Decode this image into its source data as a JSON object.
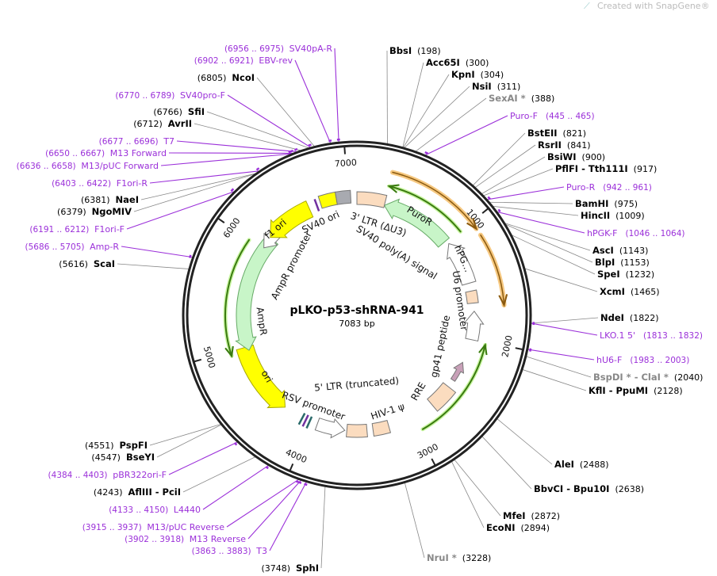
{
  "watermark": "Created with SnapGene®",
  "plasmid": {
    "name": "pLKO-p53-shRNA-941",
    "size_label": "7083 bp",
    "length_bp": 7083
  },
  "colors": {
    "primer": "#9b30d9",
    "site": "#000000",
    "nonunique_site": "#888888",
    "yellow": "#ffff00",
    "green": "#c8f5c8",
    "orange": "#e8a040",
    "peach": "#fbdcbf"
  },
  "ticks": [
    "1000",
    "2000",
    "3000",
    "4000",
    "5000",
    "6000",
    "7000"
  ],
  "sites": [
    {
      "name": "BbsI",
      "pos": 198
    },
    {
      "name": "Acc65I",
      "pos": 300
    },
    {
      "name": "KpnI",
      "pos": 304
    },
    {
      "name": "NsiI",
      "pos": 311
    },
    {
      "name": "SexAI *",
      "pos": 388,
      "gray": true
    },
    {
      "name": "BstEII",
      "pos": 821
    },
    {
      "name": "RsrII",
      "pos": 841
    },
    {
      "name": "BsiWI",
      "pos": 900
    },
    {
      "name": "PflFI - Tth111I",
      "pos": 917
    },
    {
      "name": "BamHI",
      "pos": 975
    },
    {
      "name": "HincII",
      "pos": 1009
    },
    {
      "name": "AscI",
      "pos": 1143
    },
    {
      "name": "BlpI",
      "pos": 1153
    },
    {
      "name": "SpeI",
      "pos": 1232
    },
    {
      "name": "XcmI",
      "pos": 1465
    },
    {
      "name": "NdeI",
      "pos": 1822
    },
    {
      "name": "BspDI * - ClaI *",
      "pos": 2040,
      "gray": true
    },
    {
      "name": "KflI - PpuMI",
      "pos": 2128
    },
    {
      "name": "AleI",
      "pos": 2488
    },
    {
      "name": "BbvCI - Bpu10I",
      "pos": 2638
    },
    {
      "name": "MfeI",
      "pos": 2872
    },
    {
      "name": "EcoNI",
      "pos": 2894
    },
    {
      "name": "NruI *",
      "pos": 3228,
      "gray": true
    },
    {
      "name": "SphI",
      "pos": 3748
    },
    {
      "name": "AflIII - PciI",
      "pos": 4243
    },
    {
      "name": "BseYI",
      "pos": 4547
    },
    {
      "name": "PspFI",
      "pos": 4551
    },
    {
      "name": "ScaI",
      "pos": 5616
    },
    {
      "name": "NgoMIV",
      "pos": 6379
    },
    {
      "name": "NaeI",
      "pos": 6381
    },
    {
      "name": "AvrII",
      "pos": 6712
    },
    {
      "name": "SfiI",
      "pos": 6766
    },
    {
      "name": "NcoI",
      "pos": 6805
    }
  ],
  "primers": [
    {
      "name": "Puro-F",
      "range": "445 .. 465",
      "start": 445,
      "end": 465
    },
    {
      "name": "Puro-R",
      "range": "942 .. 961",
      "start": 942,
      "end": 961
    },
    {
      "name": "hPGK-F",
      "range": "1046 .. 1064",
      "start": 1046,
      "end": 1064
    },
    {
      "name": "LKO.1 5'",
      "range": "1813 .. 1832",
      "start": 1813,
      "end": 1832
    },
    {
      "name": "hU6-F",
      "range": "1983 .. 2003",
      "start": 1983,
      "end": 2003
    },
    {
      "name": "T3",
      "range": "3863 .. 3883",
      "start": 3863,
      "end": 3883
    },
    {
      "name": "M13 Reverse",
      "range": "3902 .. 3918",
      "start": 3902,
      "end": 3918
    },
    {
      "name": "M13/pUC Reverse",
      "range": "3915 .. 3937",
      "start": 3915,
      "end": 3937
    },
    {
      "name": "L4440",
      "range": "4133 .. 4150",
      "start": 4133,
      "end": 4150
    },
    {
      "name": "pBR322ori-F",
      "range": "4384 .. 4403",
      "start": 4384,
      "end": 4403
    },
    {
      "name": "Amp-R",
      "range": "5686 .. 5705",
      "start": 5686,
      "end": 5705
    },
    {
      "name": "F1ori-F",
      "range": "6191 .. 6212",
      "start": 6191,
      "end": 6212
    },
    {
      "name": "F1ori-R",
      "range": "6403 .. 6422",
      "start": 6403,
      "end": 6422
    },
    {
      "name": "M13/pUC Forward",
      "range": "6636 .. 6658",
      "start": 6636,
      "end": 6658
    },
    {
      "name": "M13 Forward",
      "range": "6650 .. 6667",
      "start": 6650,
      "end": 6667
    },
    {
      "name": "T7",
      "range": "6677 .. 6696",
      "start": 6677,
      "end": 6696
    },
    {
      "name": "SV40pro-F",
      "range": "6770 .. 6789",
      "start": 6770,
      "end": 6789
    },
    {
      "name": "EBV-rev",
      "range": "6902 .. 6921",
      "start": 6902,
      "end": 6921
    },
    {
      "name": "SV40pA-R",
      "range": "6956 .. 6975",
      "start": 6956,
      "end": 6975
    }
  ],
  "features": [
    {
      "name": "f1 ori",
      "type": "rep_origin"
    },
    {
      "name": "SV40 ori",
      "type": "rep_origin"
    },
    {
      "name": "3' LTR (ΔU3)",
      "type": "LTR"
    },
    {
      "name": "SV40 poly(A) signal",
      "type": "polyA"
    },
    {
      "name": "PuroR",
      "type": "CDS"
    },
    {
      "name": "hPG...",
      "type": "promoter"
    },
    {
      "name": "U6 promoter",
      "type": "promoter"
    },
    {
      "name": "gp41 peptide",
      "type": "CDS"
    },
    {
      "name": "RRE",
      "type": "misc"
    },
    {
      "name": "HIV-1 ψ",
      "type": "misc"
    },
    {
      "name": "5' LTR (truncated)",
      "type": "LTR"
    },
    {
      "name": "RSV promoter",
      "type": "promoter"
    },
    {
      "name": "ori",
      "type": "rep_origin"
    },
    {
      "name": "AmpR",
      "type": "CDS"
    },
    {
      "name": "AmpR promoter",
      "type": "promoter"
    }
  ]
}
